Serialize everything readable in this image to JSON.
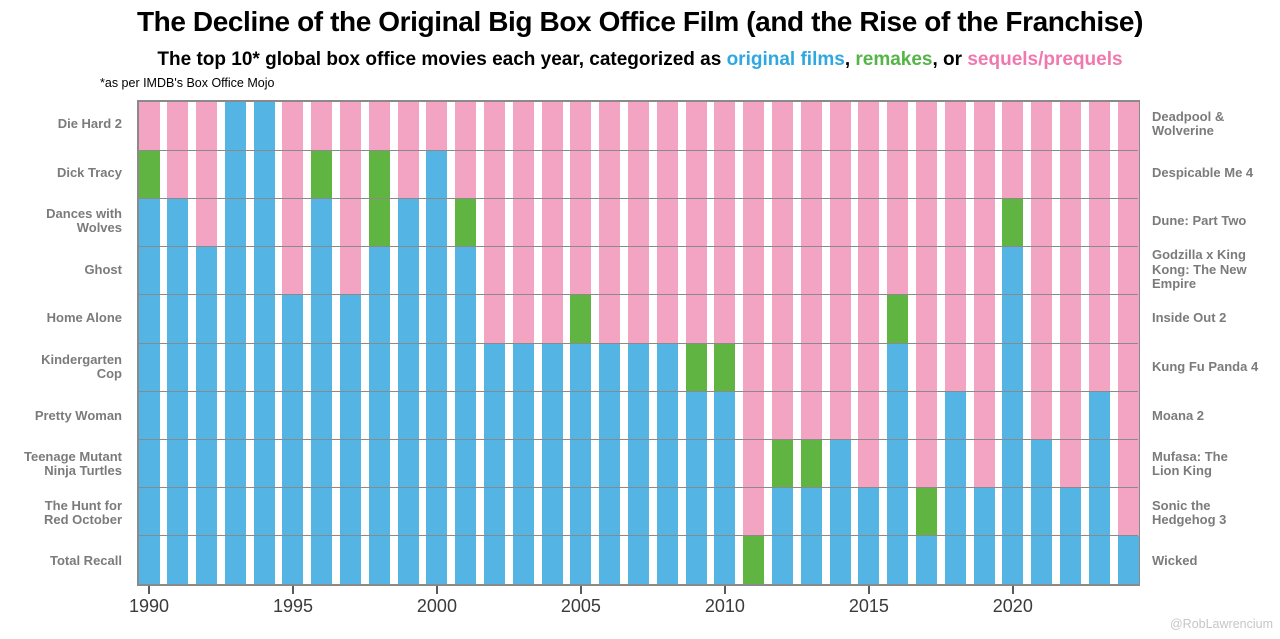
{
  "title": "The Decline of the Original Big Box Office Film (and the Rise of the Franchise)",
  "subtitle": {
    "prefix": "The top 10* global box office movies each year, categorized as ",
    "original": "original films",
    "sep1": ", ",
    "remakes": "remakes",
    "sep2": ", or ",
    "sequels": "sequels/prequels"
  },
  "footnote": "*as per IMDB's Box Office Mojo",
  "credit": "@RobLawrencium",
  "colors": {
    "original_bar": "#54b4e4",
    "remake_bar": "#60b542",
    "sequel_bar": "#f3a4c3",
    "legend_original": "#2fa8e0",
    "legend_remake": "#55b447",
    "legend_sequel": "#f178ae",
    "gridline": "#8a8a8a",
    "side_label": "#7b7b7b"
  },
  "chart_data": {
    "type": "bar",
    "stacked": true,
    "title": "The Decline of the Original Big Box Office Film (and the Rise of the Franchise)",
    "subtitle": "The top 10* global box office movies each year, categorized as original films, remakes, or sequels/prequels",
    "xlabel": "",
    "ylabel": "",
    "ylim": [
      0,
      10
    ],
    "y_units": "films in yearly worldwide top 10",
    "grid": true,
    "legend_position": "in-subtitle",
    "x": [
      1990,
      1991,
      1992,
      1993,
      1994,
      1995,
      1996,
      1997,
      1998,
      1999,
      2000,
      2001,
      2002,
      2003,
      2004,
      2005,
      2006,
      2007,
      2008,
      2009,
      2010,
      2011,
      2012,
      2013,
      2014,
      2015,
      2016,
      2017,
      2018,
      2019,
      2020,
      2021,
      2022,
      2023,
      2024
    ],
    "x_tick_labels": [
      "1990",
      "1995",
      "2000",
      "2005",
      "2010",
      "2015",
      "2020"
    ],
    "stack_order_top_to_bottom": [
      "sequels/prequels",
      "remakes",
      "original films"
    ],
    "series": [
      {
        "name": "sequels/prequels",
        "color": "#f3a4c3",
        "values": [
          1,
          2,
          3,
          0,
          0,
          4,
          1,
          4,
          1,
          2,
          1,
          2,
          5,
          5,
          5,
          4,
          5,
          5,
          5,
          5,
          5,
          9,
          7,
          7,
          7,
          8,
          4,
          8,
          6,
          8,
          2,
          7,
          8,
          6,
          9
        ]
      },
      {
        "name": "remakes",
        "color": "#60b542",
        "values": [
          1,
          0,
          0,
          0,
          0,
          0,
          1,
          0,
          2,
          0,
          0,
          1,
          0,
          0,
          0,
          1,
          0,
          0,
          0,
          1,
          1,
          1,
          1,
          1,
          0,
          0,
          1,
          1,
          0,
          0,
          1,
          0,
          0,
          0,
          0
        ]
      },
      {
        "name": "original films",
        "color": "#54b4e4",
        "values": [
          8,
          8,
          7,
          10,
          10,
          6,
          8,
          6,
          7,
          8,
          9,
          7,
          5,
          5,
          5,
          5,
          5,
          5,
          5,
          4,
          4,
          0,
          2,
          2,
          3,
          2,
          5,
          1,
          4,
          2,
          7,
          3,
          2,
          4,
          1
        ]
      }
    ],
    "left_labels_1990_top10": [
      "Die Hard 2",
      "Dick Tracy",
      "Dances with\nWolves",
      "Ghost",
      "Home Alone",
      "Kindergarten\nCop",
      "Pretty Woman",
      "Teenage Mutant\nNinja Turtles",
      "The Hunt for\nRed October",
      "Total Recall"
    ],
    "right_labels_2024_top10": [
      "Deadpool &\nWolverine",
      "Despicable Me 4",
      "Dune: Part Two",
      "Godzilla x King\nKong: The New\nEmpire",
      "Inside Out 2",
      "Kung Fu Panda 4",
      "Moana 2",
      "Mufasa: The\nLion King",
      "Sonic the\nHedgehog 3",
      "Wicked"
    ]
  }
}
